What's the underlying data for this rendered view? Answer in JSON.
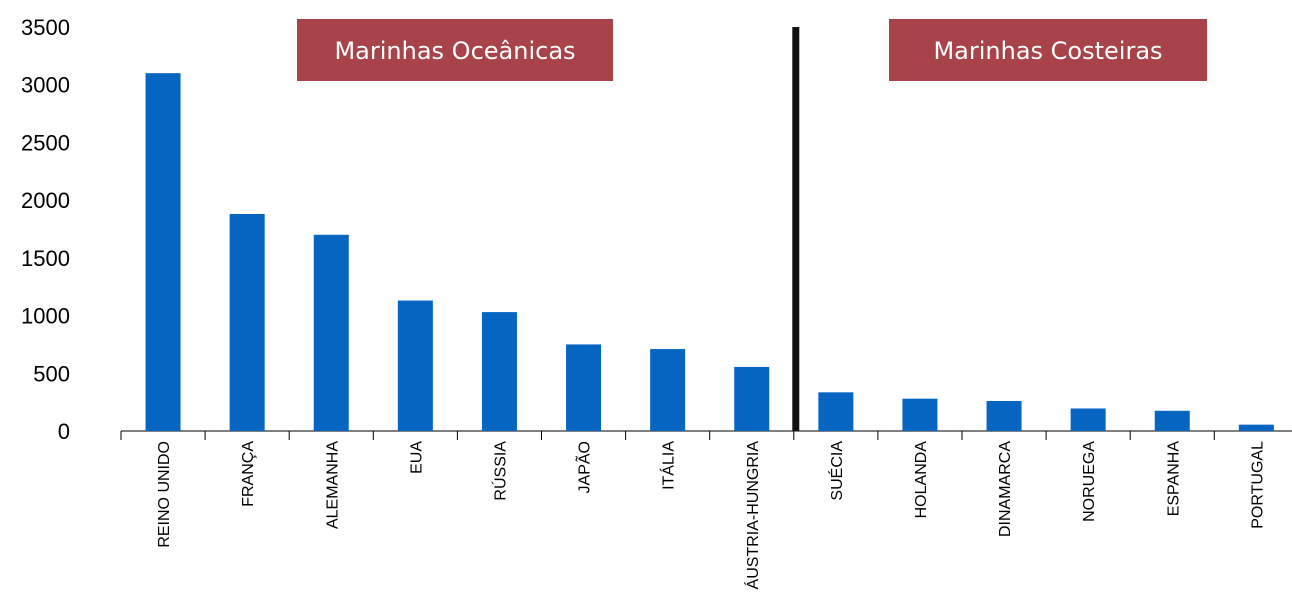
{
  "chart_data": {
    "type": "bar",
    "categories": [
      "REINO UNIDO",
      "FRANÇA",
      "ALEMANHA",
      "EUA",
      "RÚSSIA",
      "JAPÃO",
      "ITÁLIA",
      "ÁUSTRIA-HUNGRIA",
      "SUÉCIA",
      "HOLANDA",
      "DINAMARCA",
      "NORUEGA",
      "ESPANHA",
      "PORTUGAL"
    ],
    "values": [
      3100,
      1880,
      1700,
      1130,
      1030,
      750,
      710,
      555,
      335,
      280,
      260,
      195,
      175,
      55
    ],
    "ylim": [
      0,
      3500
    ],
    "yticks": [
      "0",
      "500",
      "1000",
      "1500",
      "2000",
      "2500",
      "3000",
      "3500"
    ],
    "groups": [
      {
        "label": "Marinhas Oceânicas",
        "first": 0,
        "last": 7
      },
      {
        "label": "Marinhas Costeiras",
        "first": 8,
        "last": 13
      }
    ],
    "grid": false,
    "legend": "none"
  },
  "colors": {
    "bar": "#0565C1",
    "banner": "#A8434A",
    "divider": "#111111",
    "axis": "#000000"
  }
}
